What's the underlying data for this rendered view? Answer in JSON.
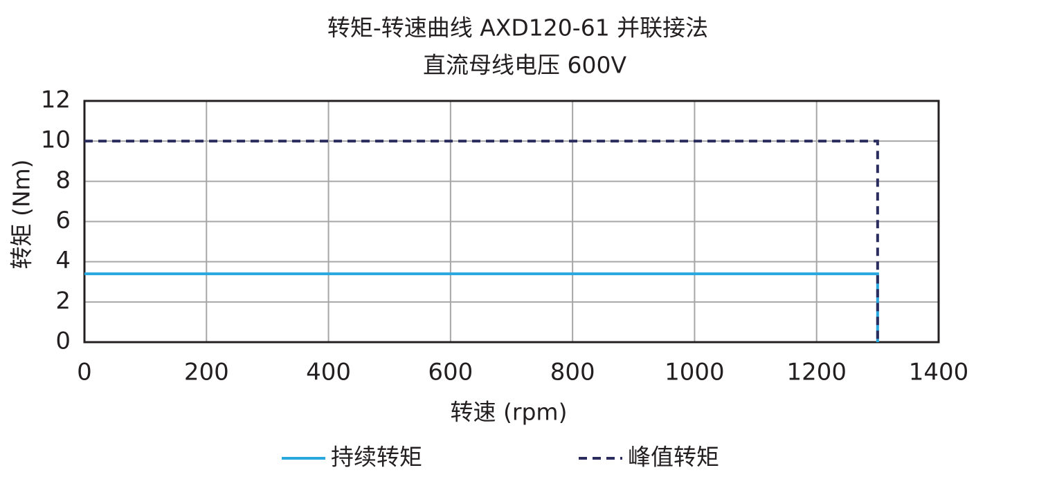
{
  "chart_data": {
    "type": "line",
    "title": "转矩-转速曲线 AXD120-61 并联接法",
    "subtitle": "直流母线电压 600V",
    "x_label": "转速 (rpm)",
    "y_label": "转矩 (Nm)",
    "xlim": [
      0,
      1400
    ],
    "xticks": [
      0,
      200,
      400,
      600,
      800,
      1000,
      1200,
      1400
    ],
    "ylim": [
      0,
      12
    ],
    "yticks": [
      0,
      2,
      4,
      6,
      8,
      10,
      12
    ],
    "grid": true,
    "legend": "bottom",
    "series": [
      {
        "name": "持续转矩",
        "color": "#29a8e0",
        "style": "solid",
        "x": [
          0,
          1300,
          1300
        ],
        "values": [
          3.4,
          3.4,
          0
        ]
      },
      {
        "name": "峰值转矩",
        "color": "#2b2d5e",
        "style": "dashed",
        "x": [
          0,
          1300,
          1300
        ],
        "values": [
          10,
          10,
          0
        ]
      }
    ]
  }
}
